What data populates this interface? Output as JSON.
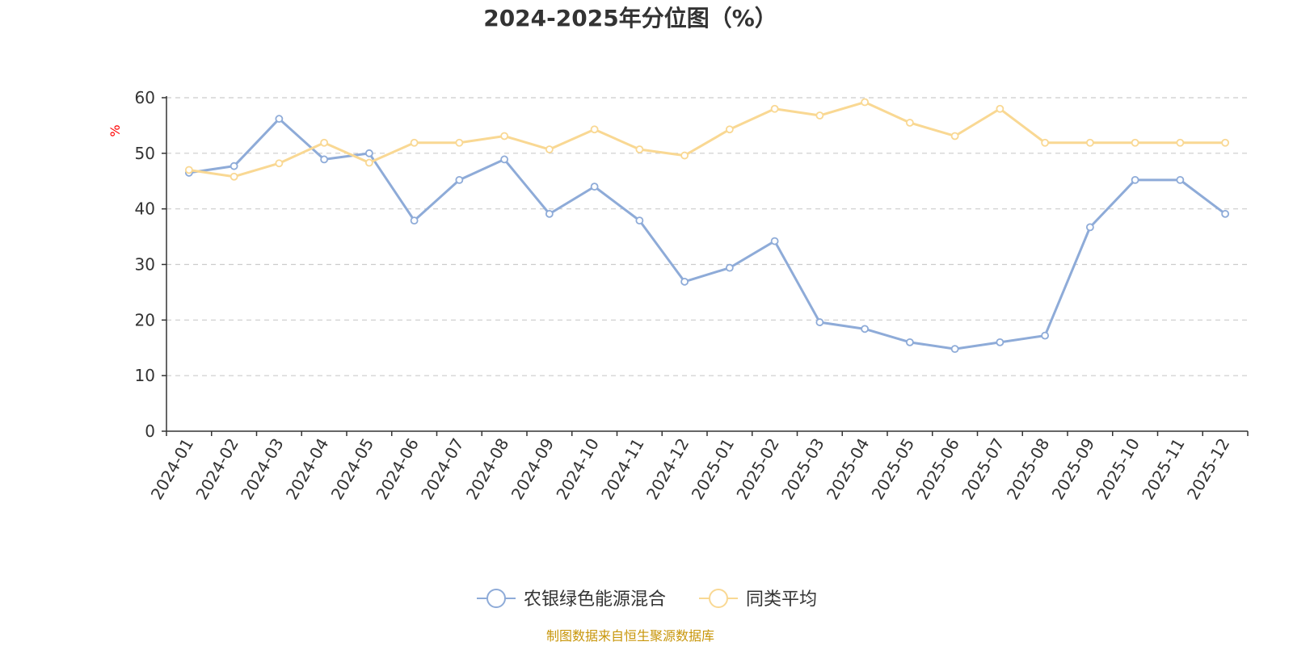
{
  "chart_data": {
    "type": "line",
    "title": "2024-2025年分位图（%）",
    "ylabel": "%",
    "xlabel": "",
    "ylim": [
      0,
      60
    ],
    "yticks": [
      0,
      10,
      20,
      30,
      40,
      50,
      60
    ],
    "grid": "horizontal-dashed",
    "legend_position": "bottom-center",
    "categories": [
      "2024-01",
      "2024-02",
      "2024-03",
      "2024-04",
      "2024-05",
      "2024-06",
      "2024-07",
      "2024-08",
      "2024-09",
      "2024-10",
      "2024-11",
      "2024-12",
      "2025-01",
      "2025-02",
      "2025-03",
      "2025-04",
      "2025-05",
      "2025-06",
      "2025-07",
      "2025-08",
      "2025-09",
      "2025-10",
      "2025-11",
      "2025-12"
    ],
    "series": [
      {
        "name": "农银绿色能源混合",
        "color": "#8eabd8",
        "values": [
          46.5,
          47.7,
          56.2,
          48.9,
          50.0,
          37.9,
          45.2,
          48.9,
          39.1,
          44.0,
          37.9,
          26.9,
          29.4,
          34.2,
          19.6,
          18.4,
          16.0,
          14.8,
          16.0,
          17.2,
          36.7,
          45.2,
          45.2,
          39.1
        ]
      },
      {
        "name": "同类平均",
        "color": "#f9d893",
        "values": [
          47.0,
          45.8,
          48.2,
          51.9,
          48.3,
          51.9,
          51.9,
          53.1,
          50.7,
          54.3,
          50.7,
          49.6,
          54.3,
          58.0,
          56.8,
          59.2,
          55.5,
          53.1,
          58.0,
          51.9,
          51.9,
          51.9,
          51.9,
          51.9
        ]
      }
    ],
    "source": "制图数据来自恒生聚源数据库"
  }
}
